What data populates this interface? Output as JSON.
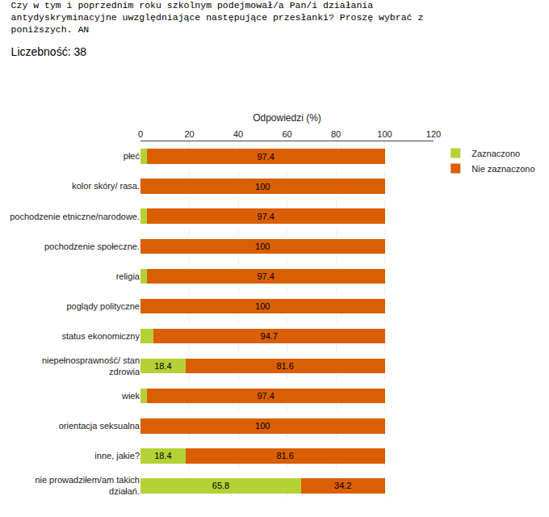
{
  "chart_data": {
    "type": "bar",
    "orientation": "horizontal",
    "stacked": true,
    "title": "Czy w tym i poprzednim roku szkolnym podejmował/a Pan/i działania\nantydyskryminacyjne uwzględniające następujące przesłanki? Proszę wybrać z\nponiższych. AN",
    "subtitle": "Liczebność: 38",
    "xlabel": "Odpowiedzi (%)",
    "categories": [
      "nie prowadziłem/am takich\ndziałań.",
      "inne, jakie?",
      "orientacja seksualna",
      "wiek",
      "niepełnosprawność/ stan\nzdrowia",
      "status ekonomiczny",
      "poglądy polityczne",
      "religia",
      "pochodzenie społeczne.",
      "pochodzenie etniczne/narodowe.",
      "kolor skóry/ rasa.",
      "płeć"
    ],
    "series": [
      {
        "name": "Zaznaczono",
        "color": "#b5d135",
        "values": [
          65.8,
          18.4,
          0,
          2.6,
          18.4,
          5.3,
          0,
          2.6,
          0,
          2.6,
          0,
          2.6
        ],
        "value_labels": [
          "65.8",
          "18.4",
          null,
          null,
          "18.4",
          null,
          null,
          null,
          null,
          null,
          null,
          null
        ]
      },
      {
        "name": "Nie zaznaczono",
        "color": "#d95f02",
        "values": [
          34.2,
          81.6,
          100,
          97.4,
          81.6,
          94.7,
          100,
          97.4,
          100,
          97.4,
          100,
          97.4
        ]
      }
    ],
    "xlim": [
      0,
      120
    ],
    "xticks": [
      0,
      20,
      40,
      60,
      80,
      100,
      120
    ],
    "grid": true,
    "legend": "upper right",
    "data_labels": true
  }
}
